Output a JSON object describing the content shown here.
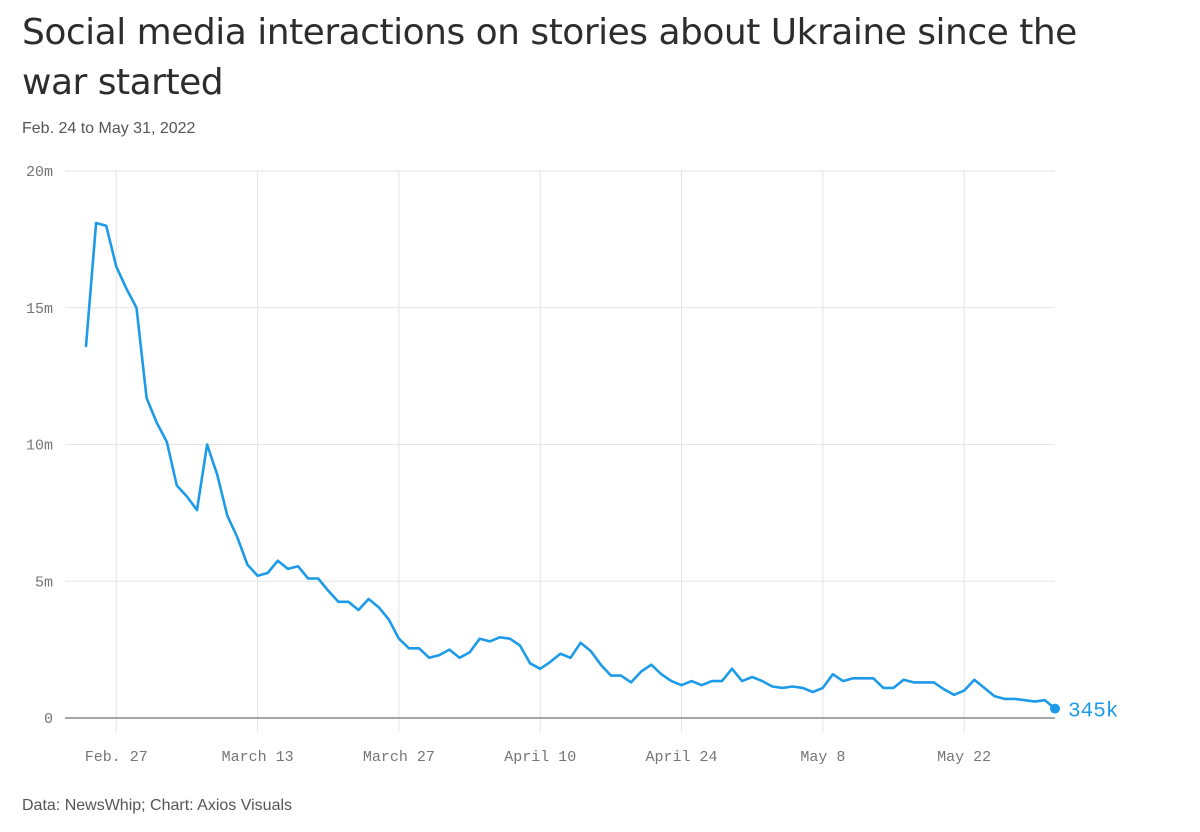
{
  "header": {
    "title": "Social media interactions on stories about Ukraine since the war started",
    "subtitle": "Feb. 24 to May 31, 2022"
  },
  "footer": {
    "source": "Data: NewsWhip; Chart: Axios Visuals"
  },
  "colors": {
    "line": "#1d9be8",
    "grid": "#e3e3e3",
    "axis": "#888888",
    "tick_text": "#757575"
  },
  "chart_data": {
    "type": "line",
    "title": "Social media interactions on stories about Ukraine since the war started",
    "subtitle": "Feb. 24 to May 31, 2022",
    "xlabel": "",
    "ylabel": "",
    "x_start": "2022-02-24",
    "x_end": "2022-05-31",
    "ylim": [
      0,
      20000000
    ],
    "y_ticks": [
      0,
      5000000,
      10000000,
      15000000,
      20000000
    ],
    "y_tick_labels": [
      "0",
      "5m",
      "10m",
      "15m",
      "20m"
    ],
    "x_ticks": [
      "2022-02-27",
      "2022-03-13",
      "2022-03-27",
      "2022-04-10",
      "2022-04-24",
      "2022-05-08",
      "2022-05-22"
    ],
    "x_tick_labels": [
      "Feb. 27",
      "March 13",
      "March 27",
      "April 10",
      "April 24",
      "May 8",
      "May 22"
    ],
    "grid": true,
    "end_label": "345k",
    "series": [
      {
        "values": [
          13600000,
          18100000,
          18000000,
          16500000,
          15700000,
          15000000,
          11700000,
          10800000,
          10100000,
          8500000,
          8100000,
          7600000,
          10000000,
          8900000,
          7400000,
          6600000,
          5600000,
          5200000,
          5300000,
          5750000,
          5450000,
          5550000,
          5100000,
          5100000,
          4650000,
          4250000,
          4250000,
          3950000,
          4350000,
          4050000,
          3600000,
          2900000,
          2550000,
          2550000,
          2200000,
          2300000,
          2500000,
          2200000,
          2400000,
          2900000,
          2800000,
          2950000,
          2900000,
          2650000,
          2000000,
          1800000,
          2050000,
          2350000,
          2200000,
          2750000,
          2450000,
          1950000,
          1550000,
          1550000,
          1300000,
          1700000,
          1950000,
          1600000,
          1350000,
          1200000,
          1350000,
          1200000,
          1350000,
          1350000,
          1800000,
          1350000,
          1500000,
          1350000,
          1150000,
          1100000,
          1150000,
          1100000,
          950000,
          1100000,
          1600000,
          1350000,
          1450000,
          1450000,
          1450000,
          1100000,
          1100000,
          1400000,
          1300000,
          1300000,
          1300000,
          1050000,
          850000,
          1000000,
          1400000,
          1100000,
          800000,
          700000,
          700000,
          650000,
          600000,
          650000,
          345000
        ]
      }
    ]
  }
}
